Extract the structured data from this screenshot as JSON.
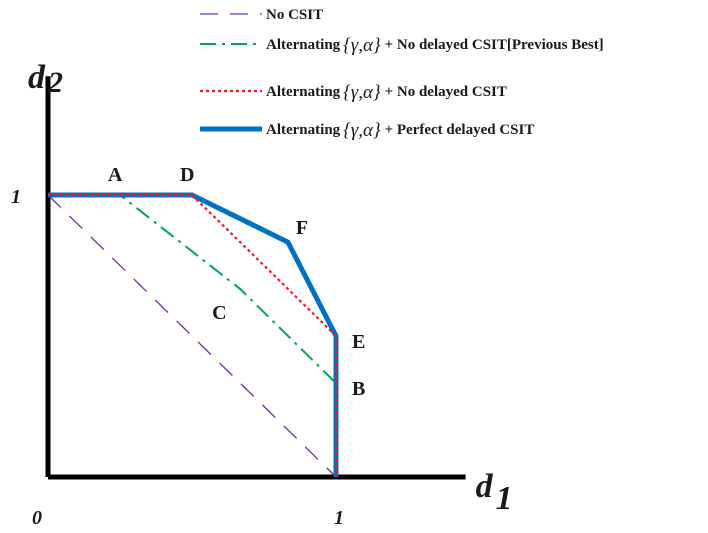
{
  "chart_data": {
    "type": "line",
    "xlabel": "d",
    "xlabel_sub": "1",
    "ylabel": "d",
    "ylabel_sub": "2",
    "xlim": [
      0,
      1.45
    ],
    "ylim": [
      0,
      1.4
    ],
    "x_ticks": [
      {
        "value": 0,
        "label": "0"
      },
      {
        "value": 1,
        "label": "1"
      }
    ],
    "y_ticks": [
      {
        "value": 1,
        "label": "1"
      }
    ],
    "math_symbol": "{γ,α}",
    "legend_position": "top-right",
    "series": [
      {
        "name": "No CSIT",
        "color": "#7030a0",
        "dash": "18,12",
        "width": 1.3,
        "points": [
          [
            0,
            1
          ],
          [
            1,
            0
          ]
        ]
      },
      {
        "name_prefix": "Alternating",
        "name_suffix": "+ No delayed CSIT[Previous Best]",
        "color": "#00a651",
        "dash": "16,6,3,6",
        "width": 2,
        "points": [
          [
            0,
            1
          ],
          [
            0.25,
            1
          ],
          [
            0.667,
            0.667
          ],
          [
            1,
            0.333
          ],
          [
            1,
            0
          ]
        ]
      },
      {
        "name_prefix": "Alternating",
        "name_suffix": "+ No delayed CSIT",
        "color": "#ed1c24",
        "dash": "3,3",
        "width": 2.2,
        "points": [
          [
            0,
            1
          ],
          [
            0.5,
            1
          ],
          [
            1,
            0.5
          ],
          [
            1,
            0
          ]
        ]
      },
      {
        "name_prefix": "Alternating",
        "name_suffix": "+ Perfect delayed CSIT",
        "color": "#0070c0",
        "dash": "",
        "width": 5,
        "points": [
          [
            0,
            1
          ],
          [
            0.5,
            1
          ],
          [
            0.833,
            0.833
          ],
          [
            1,
            0.5
          ],
          [
            1,
            0
          ]
        ]
      }
    ],
    "annotations": [
      {
        "text": "A",
        "x": 0.25,
        "y": 1,
        "anchor": "above-left"
      },
      {
        "text": "D",
        "x": 0.5,
        "y": 1,
        "anchor": "above-left"
      },
      {
        "text": "F",
        "x": 0.833,
        "y": 0.833,
        "anchor": "above-right"
      },
      {
        "text": "C",
        "x": 0.667,
        "y": 0.667,
        "anchor": "below-left"
      },
      {
        "text": "E",
        "x": 1,
        "y": 0.5,
        "anchor": "right"
      },
      {
        "text": "B",
        "x": 1,
        "y": 0.333,
        "anchor": "right"
      }
    ]
  }
}
